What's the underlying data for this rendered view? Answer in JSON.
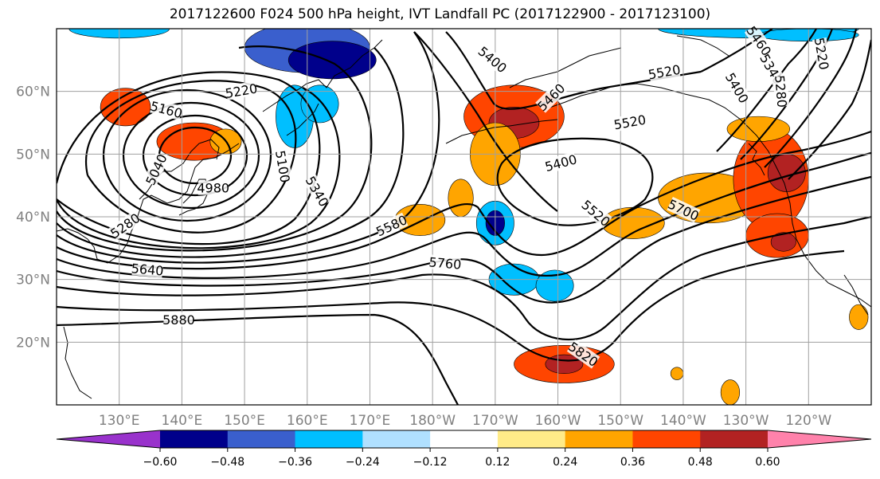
{
  "title": "2017122600 F024 500 hPa height, IVT Landfall PC (2017122900 - 2017123100)",
  "map": {
    "projection": "PlateCarree",
    "lon_range": [
      120,
      250
    ],
    "lat_range": [
      10,
      70
    ],
    "lat_ticks": [
      {
        "lat": 60,
        "label": "60°N"
      },
      {
        "lat": 50,
        "label": "50°N"
      },
      {
        "lat": 40,
        "label": "40°N"
      },
      {
        "lat": 30,
        "label": "30°N"
      },
      {
        "lat": 20,
        "label": "20°N"
      }
    ],
    "lon_ticks": [
      {
        "lon": 130,
        "label": "130°E"
      },
      {
        "lon": 140,
        "label": "140°E"
      },
      {
        "lon": 150,
        "label": "150°E"
      },
      {
        "lon": 160,
        "label": "160°E"
      },
      {
        "lon": 170,
        "label": "170°E"
      },
      {
        "lon": 180,
        "label": "180°W"
      },
      {
        "lon": 190,
        "label": "170°W"
      },
      {
        "lon": 200,
        "label": "160°W"
      },
      {
        "lon": 210,
        "label": "150°W"
      },
      {
        "lon": 220,
        "label": "140°W"
      },
      {
        "lon": 230,
        "label": "130°W"
      },
      {
        "lon": 240,
        "label": "120°W"
      }
    ],
    "gridlines": true,
    "height_contour_labels": [
      {
        "text": "5160",
        "lon": 137.5,
        "lat": 57,
        "angle": -15
      },
      {
        "text": "5220",
        "lon": 149.5,
        "lat": 60,
        "angle": 10
      },
      {
        "text": "5040",
        "lon": 136,
        "lat": 47.5,
        "angle": 65
      },
      {
        "text": "4980",
        "lon": 145,
        "lat": 44.5,
        "angle": 0
      },
      {
        "text": "5100",
        "lon": 156,
        "lat": 48,
        "angle": -80
      },
      {
        "text": "5340",
        "lon": 161.5,
        "lat": 44,
        "angle": -60
      },
      {
        "text": "5280",
        "lon": 131,
        "lat": 38.5,
        "angle": 35
      },
      {
        "text": "5640",
        "lon": 134.5,
        "lat": 31.5,
        "angle": -5
      },
      {
        "text": "5880",
        "lon": 139.5,
        "lat": 23.5,
        "angle": 0
      },
      {
        "text": "5580",
        "lon": 173.5,
        "lat": 38.5,
        "angle": 25
      },
      {
        "text": "5760",
        "lon": 182,
        "lat": 32.5,
        "angle": -5
      },
      {
        "text": "5400",
        "lon": 189.5,
        "lat": 65,
        "angle": -40
      },
      {
        "text": "5460",
        "lon": 199,
        "lat": 59,
        "angle": 45
      },
      {
        "text": "5400",
        "lon": 200.5,
        "lat": 48.5,
        "angle": 15
      },
      {
        "text": "5520",
        "lon": 211.5,
        "lat": 55,
        "angle": 10
      },
      {
        "text": "5520",
        "lon": 217,
        "lat": 63,
        "angle": 10
      },
      {
        "text": "5520",
        "lon": 206,
        "lat": 40.5,
        "angle": -40
      },
      {
        "text": "5700",
        "lon": 220,
        "lat": 41,
        "angle": -25
      },
      {
        "text": "5820",
        "lon": 204,
        "lat": 18,
        "angle": -35
      },
      {
        "text": "5400",
        "lon": 228.5,
        "lat": 60.5,
        "angle": -60
      },
      {
        "text": "5460",
        "lon": 232,
        "lat": 68,
        "angle": -55
      },
      {
        "text": "5340",
        "lon": 234,
        "lat": 63.5,
        "angle": -60
      },
      {
        "text": "5280",
        "lon": 235.5,
        "lat": 60,
        "angle": -85
      },
      {
        "text": "5220",
        "lon": 242,
        "lat": 66,
        "angle": -80
      }
    ]
  },
  "colorbar": {
    "colors": [
      "#9932cc",
      "#00008b",
      "#3a5fcd",
      "#00bfff",
      "#b0e0ff",
      "#ffffff",
      "#ffeb88",
      "#ffa500",
      "#ff4500",
      "#b22222",
      "#ff82ab"
    ],
    "ticks": [
      "−0.60",
      "−0.48",
      "−0.36",
      "−0.24",
      "−0.12",
      "0.12",
      "0.24",
      "0.36",
      "0.48",
      "0.60"
    ],
    "extend": "both"
  },
  "chart_data": {
    "type": "heatmap",
    "variable": "IVT Landfall PC",
    "contour_variable": "500 hPa height",
    "levels": [
      -0.6,
      -0.48,
      -0.36,
      -0.24,
      -0.12,
      0.12,
      0.24,
      0.36,
      0.48,
      0.6
    ],
    "blobs": [
      {
        "lon": 131,
        "lat": 57.5,
        "rx": 4,
        "ry": 3,
        "value": 0.4
      },
      {
        "lon": 142,
        "lat": 52,
        "rx": 6,
        "ry": 3,
        "value": 0.4
      },
      {
        "lon": 147,
        "lat": 52,
        "rx": 2.5,
        "ry": 2,
        "value": 0.3
      },
      {
        "lon": 160,
        "lat": 67,
        "rx": 10,
        "ry": 4,
        "value": -0.4
      },
      {
        "lon": 164,
        "lat": 65,
        "rx": 7,
        "ry": 3,
        "value": -0.55
      },
      {
        "lon": 158,
        "lat": 56,
        "rx": 3,
        "ry": 5,
        "value": -0.3
      },
      {
        "lon": 162,
        "lat": 58,
        "rx": 3,
        "ry": 3,
        "value": -0.3
      },
      {
        "lon": 130,
        "lat": 70,
        "rx": 8,
        "ry": 1.5,
        "value": -0.3
      },
      {
        "lon": 193,
        "lat": 56,
        "rx": 8,
        "ry": 5,
        "value": 0.4
      },
      {
        "lon": 193,
        "lat": 55,
        "rx": 4,
        "ry": 2.5,
        "value": 0.55
      },
      {
        "lon": 190,
        "lat": 50,
        "rx": 4,
        "ry": 5,
        "value": 0.3
      },
      {
        "lon": 184.5,
        "lat": 43,
        "rx": 2,
        "ry": 3,
        "value": 0.3
      },
      {
        "lon": 190,
        "lat": 39,
        "rx": 3,
        "ry": 3.5,
        "value": -0.35
      },
      {
        "lon": 190,
        "lat": 39,
        "rx": 1.5,
        "ry": 2,
        "value": -0.55
      },
      {
        "lon": 178,
        "lat": 39.5,
        "rx": 4,
        "ry": 2.5,
        "value": 0.35
      },
      {
        "lon": 193,
        "lat": 30,
        "rx": 4,
        "ry": 2.5,
        "value": -0.25
      },
      {
        "lon": 199.5,
        "lat": 29,
        "rx": 3,
        "ry": 2.5,
        "value": -0.25
      },
      {
        "lon": 201,
        "lat": 16.5,
        "rx": 8,
        "ry": 3,
        "value": 0.4
      },
      {
        "lon": 201,
        "lat": 16.5,
        "rx": 3,
        "ry": 1.5,
        "value": 0.5
      },
      {
        "lon": 224,
        "lat": 43,
        "rx": 8,
        "ry": 4,
        "value": 0.3
      },
      {
        "lon": 212,
        "lat": 39,
        "rx": 5,
        "ry": 2.5,
        "value": 0.3
      },
      {
        "lon": 234,
        "lat": 46,
        "rx": 6,
        "ry": 8,
        "value": 0.4
      },
      {
        "lon": 236.5,
        "lat": 47,
        "rx": 3,
        "ry": 3,
        "value": 0.5
      },
      {
        "lon": 235,
        "lat": 37,
        "rx": 5,
        "ry": 3.5,
        "value": 0.45
      },
      {
        "lon": 236,
        "lat": 36,
        "rx": 2,
        "ry": 1.5,
        "value": 0.52
      },
      {
        "lon": 232,
        "lat": 54,
        "rx": 5,
        "ry": 2,
        "value": 0.3
      },
      {
        "lon": 248,
        "lat": 24,
        "rx": 1.5,
        "ry": 2,
        "value": 0.35
      },
      {
        "lon": 227.5,
        "lat": 12,
        "rx": 1.5,
        "ry": 2,
        "value": 0.3
      },
      {
        "lon": 219,
        "lat": 15,
        "rx": 1,
        "ry": 1,
        "value": 0.3
      },
      {
        "lon": 232,
        "lat": 70,
        "rx": 16,
        "ry": 1.5,
        "value": -0.25
      },
      {
        "lon": 240,
        "lat": 69,
        "rx": 8,
        "ry": 1,
        "value": -0.3
      }
    ],
    "heights_m": [
      4980,
      5040,
      5100,
      5160,
      5220,
      5280,
      5340,
      5400,
      5460,
      5520,
      5580,
      5640,
      5700,
      5760,
      5820,
      5880
    ]
  }
}
